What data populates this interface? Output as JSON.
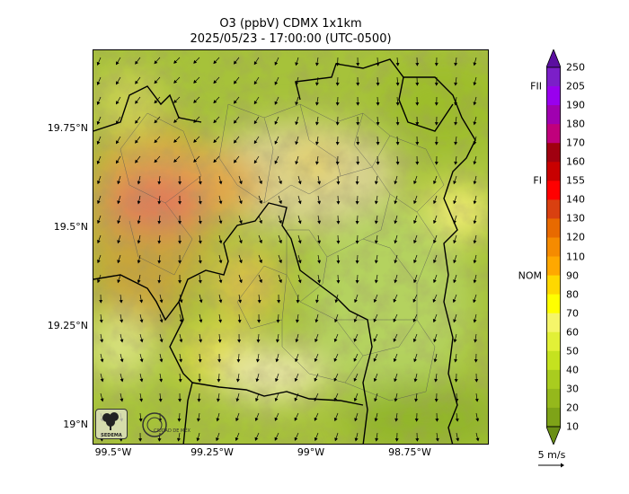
{
  "title": {
    "line1": "O3 (ppbV) CDMX 1x1km",
    "line2": "2025/05/23 - 17:00:00 (UTC-0500)"
  },
  "axes": {
    "lat_ticks": [
      "19.75°N",
      "19.5°N",
      "19.25°N",
      "19°N"
    ],
    "lon_ticks": [
      "99.5°W",
      "99.25°W",
      "99°W",
      "98.75°W"
    ]
  },
  "colorbar": {
    "tick_labels": [
      "250",
      "205",
      "190",
      "180",
      "170",
      "160",
      "155",
      "140",
      "130",
      "120",
      "110",
      "90",
      "80",
      "70",
      "60",
      "50",
      "40",
      "30",
      "20",
      "10"
    ],
    "band_colors": [
      "#6a8f15",
      "#7ea318",
      "#95b81c",
      "#a9cc1f",
      "#c5e21f",
      "#e2f037",
      "#f5f56a",
      "#ffff00",
      "#ffd800",
      "#ffa800",
      "#f58b00",
      "#e86a00",
      "#d94010",
      "#ff0000",
      "#c80000",
      "#a00010",
      "#c0007c",
      "#a000b0",
      "#9900ee",
      "#7b1fc8",
      "#5b0fa0"
    ],
    "thresholds": [
      {
        "label": "FII",
        "value": 205
      },
      {
        "label": "FI",
        "value": 155
      },
      {
        "label": "NOM",
        "value": 90
      }
    ]
  },
  "wind_scale": {
    "label": "5 m/s"
  },
  "logos": {
    "left": "SEDEMA",
    "right": "CIUDAD DE MÉXICO"
  }
}
